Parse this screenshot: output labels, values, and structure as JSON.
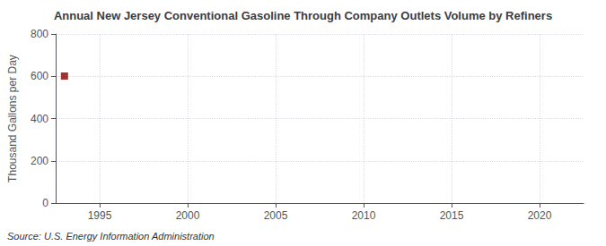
{
  "chart_data": {
    "type": "scatter",
    "title": "Annual New Jersey Conventional Gasoline Through Company Outlets Volume by Refiners",
    "ylabel": "Thousand Gallons per Day",
    "source": "Source: U.S. Energy Information Administration",
    "x": [
      1993
    ],
    "values": [
      601
    ],
    "color": "#8b0000",
    "marker": "square",
    "xlim": [
      1992.5,
      2022.5
    ],
    "xticks": [
      1995,
      2000,
      2005,
      2010,
      2015,
      2020
    ],
    "ylim": [
      0,
      800
    ],
    "yticks": [
      0,
      200,
      400,
      600,
      800
    ],
    "grid": true
  }
}
